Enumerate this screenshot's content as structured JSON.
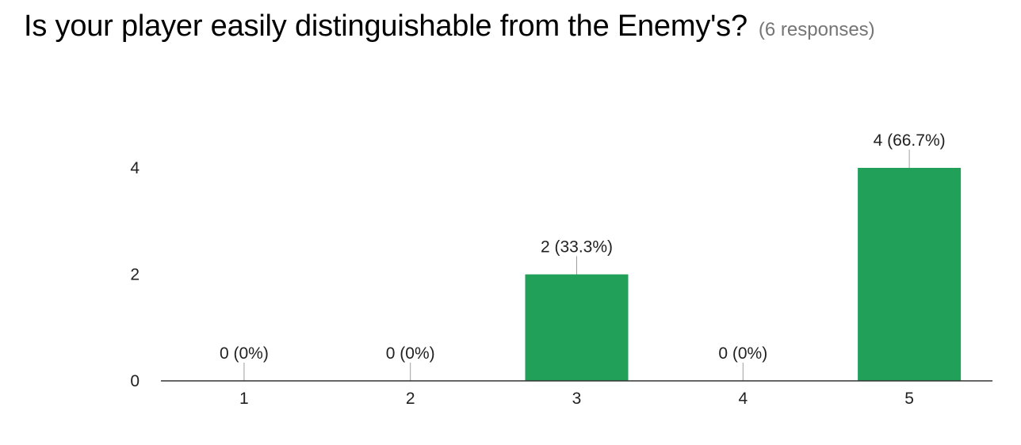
{
  "question": {
    "title": "Is your player easily distinguishable from the Enemy's?",
    "responses": "(6 responses)"
  },
  "chart_data": {
    "type": "bar",
    "categories": [
      "1",
      "2",
      "3",
      "4",
      "5"
    ],
    "values": [
      0,
      0,
      2,
      0,
      4
    ],
    "data_labels": [
      "0 (0%)",
      "0 (0%)",
      "2 (33.3%)",
      "0 (0%)",
      "4 (66.7%)"
    ],
    "yticks": [
      0,
      2,
      4
    ],
    "ylim": [
      0,
      4
    ],
    "grid": false,
    "legend": "none",
    "bar_color": "#21a05a"
  }
}
